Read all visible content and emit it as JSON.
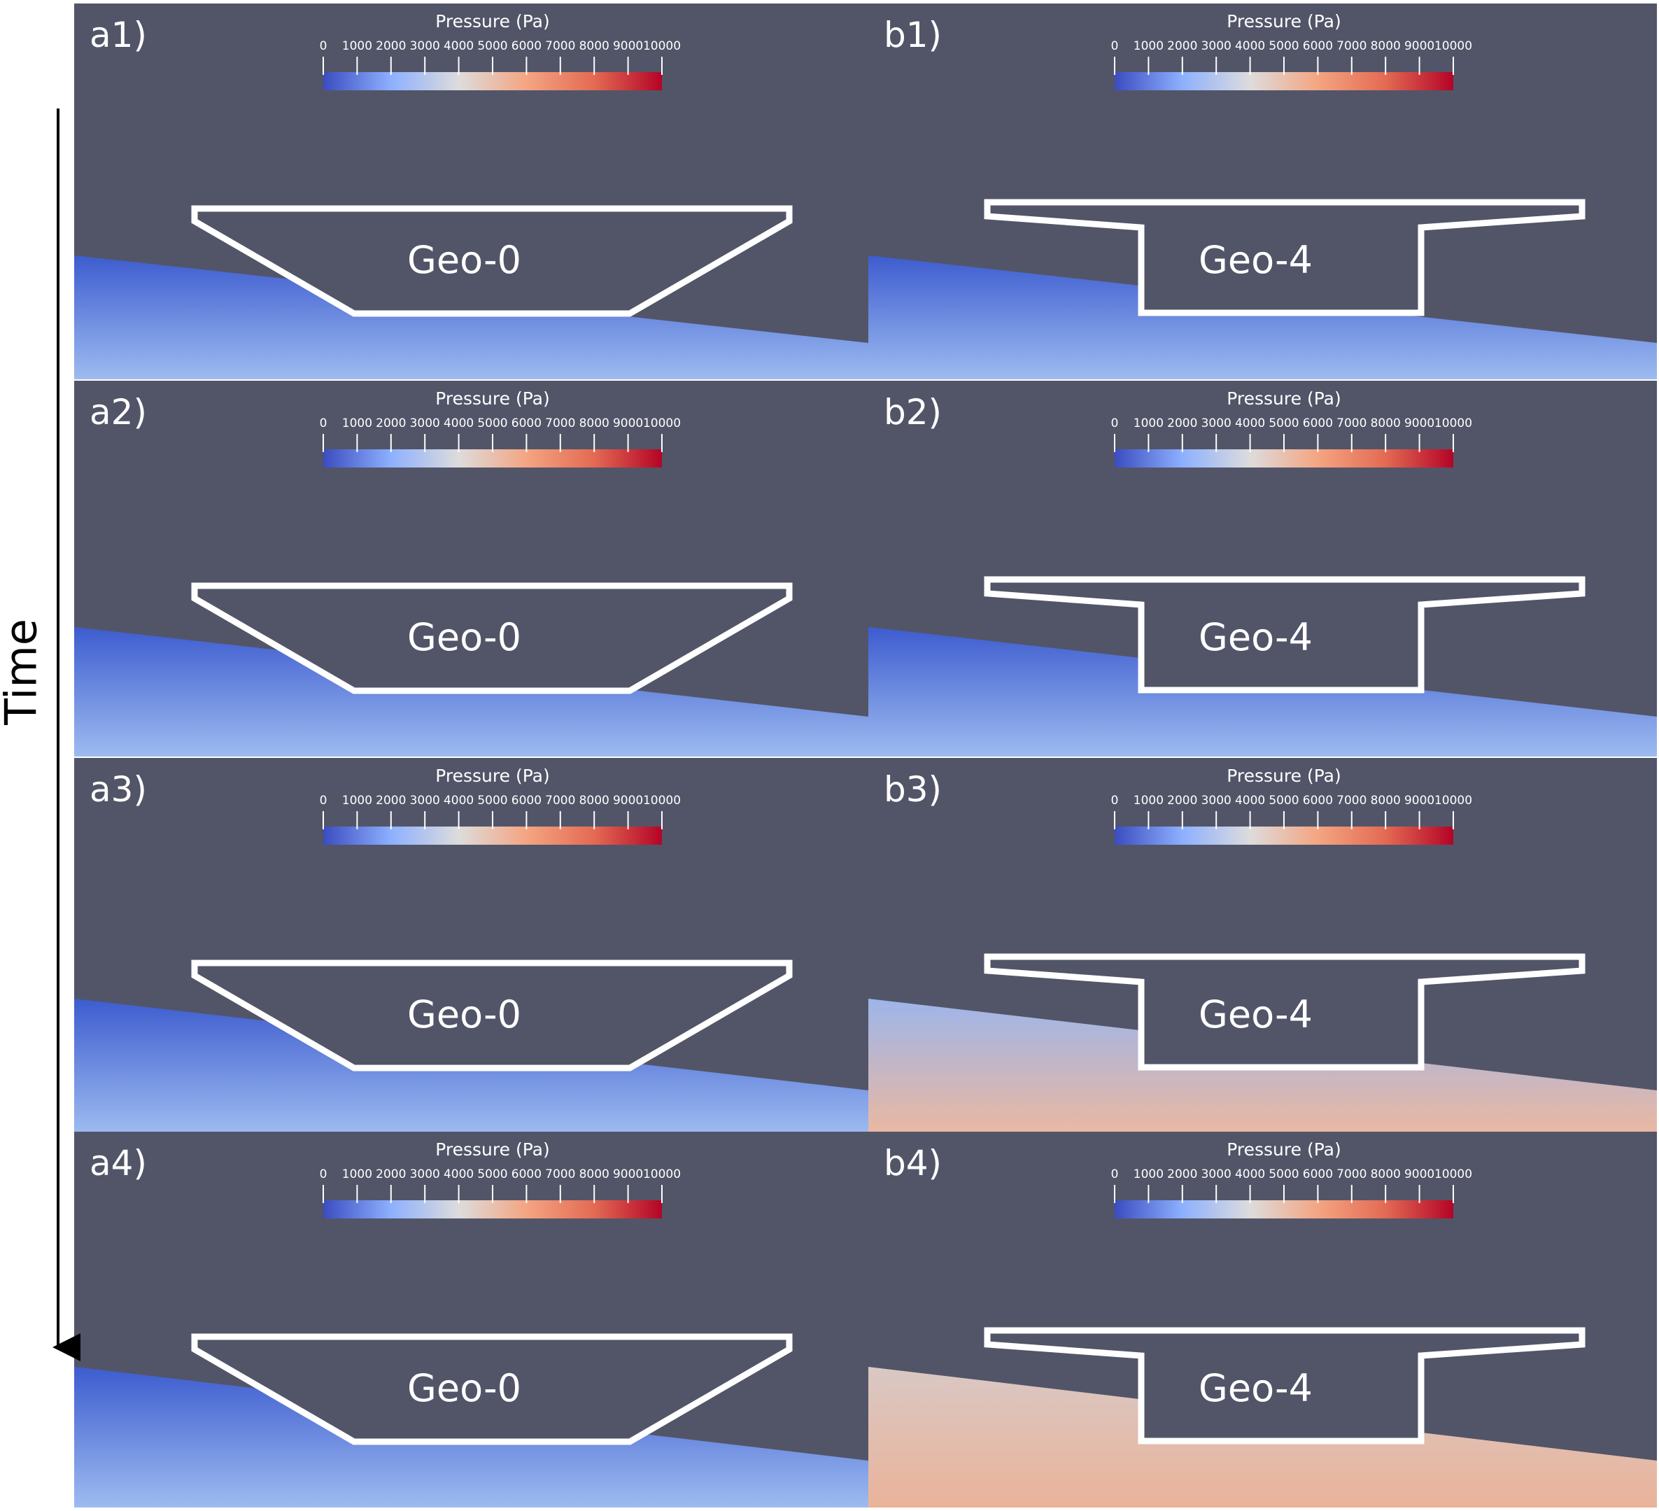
{
  "figure": {
    "time_axis_label": "Time",
    "colorbar": {
      "title": "Pressure (Pa)",
      "ticks": [
        "0",
        "1000",
        "2000",
        "3000",
        "4000",
        "5000",
        "6000",
        "7000",
        "8000",
        "9000",
        "10000"
      ],
      "range": [
        0,
        10000
      ],
      "colormap": [
        "#3b4cc0",
        "#dddddd",
        "#f29d7b",
        "#b40426"
      ]
    },
    "colors": {
      "background": "#525568",
      "water_dark": "#3d5ccf",
      "water_light": "#9dbbf0",
      "water_high_pressure": "#eab8a2",
      "outline": "#ffffff"
    },
    "panels": [
      {
        "label": "a1)",
        "geometry": "Geo-0"
      },
      {
        "label": "b1)",
        "geometry": "Geo-4"
      },
      {
        "label": "a2)",
        "geometry": "Geo-0"
      },
      {
        "label": "b2)",
        "geometry": "Geo-4"
      },
      {
        "label": "a3)",
        "geometry": "Geo-0"
      },
      {
        "label": "b3)",
        "geometry": "Geo-4"
      },
      {
        "label": "a4)",
        "geometry": "Geo-0"
      },
      {
        "label": "b4)",
        "geometry": "Geo-4"
      }
    ]
  }
}
